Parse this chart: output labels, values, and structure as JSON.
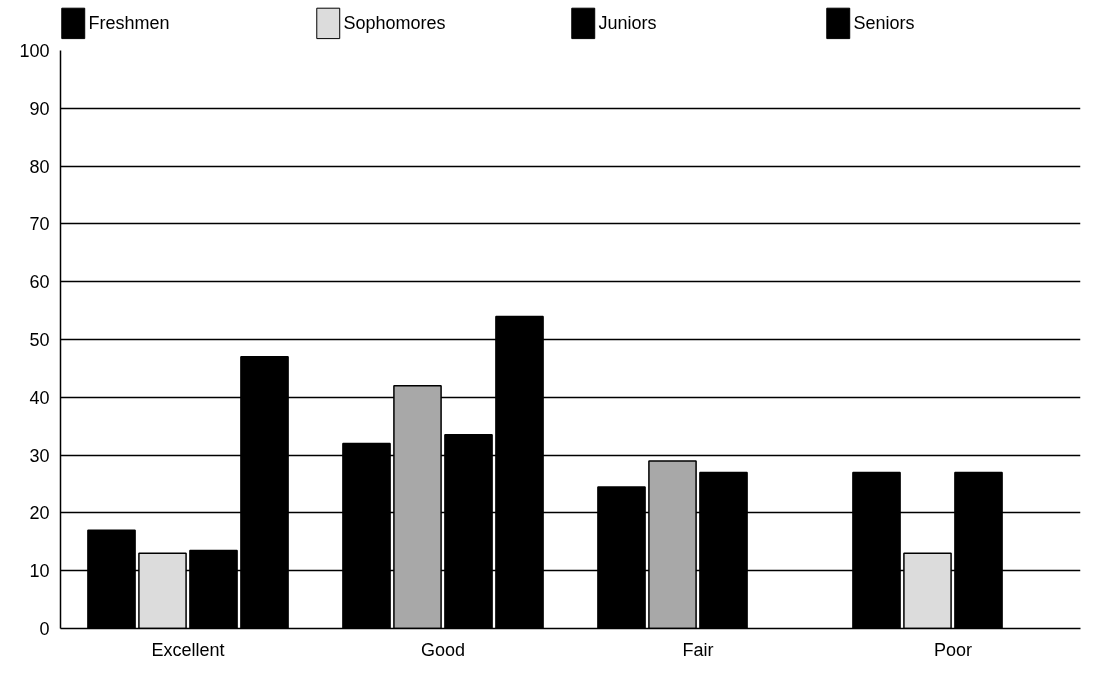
{
  "chart_data": {
    "type": "bar",
    "categories": [
      "Excellent",
      "Good",
      "Fair",
      "Poor"
    ],
    "series": [
      {
        "name": "Freshmen",
        "color": "#000000",
        "values": [
          17,
          32,
          24.5,
          27
        ]
      },
      {
        "name": "Sophomores",
        "color": "#dcdcdc",
        "colors": [
          "#dcdcdc",
          "#a8a8a8",
          "#a8a8a8",
          "#dcdcdc"
        ],
        "values": [
          13,
          42,
          29,
          13
        ]
      },
      {
        "name": "Juniors",
        "color": "#000000",
        "values": [
          13.5,
          33.5,
          27,
          27
        ]
      },
      {
        "name": "Seniors",
        "color": "#000000",
        "values": [
          47,
          54,
          null,
          null
        ]
      }
    ],
    "ylim": [
      0,
      100
    ],
    "yticks": [
      0,
      10,
      20,
      30,
      40,
      50,
      60,
      70,
      80,
      90,
      100
    ],
    "grid": "y",
    "legend": "top"
  }
}
